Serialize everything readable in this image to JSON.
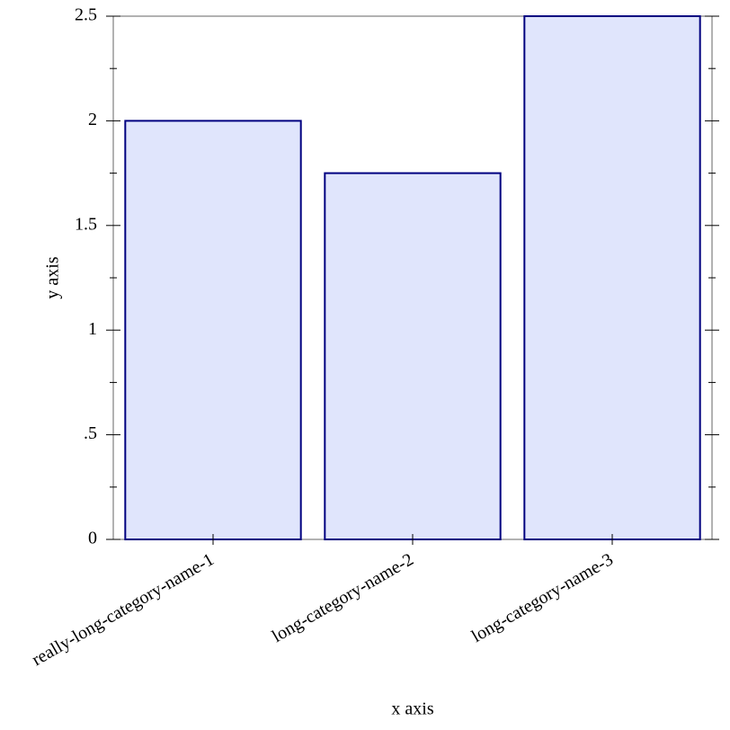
{
  "chart_data": {
    "type": "bar",
    "x_label": "x axis",
    "y_label": "y axis",
    "categories": [
      "really-long-category-name-1",
      "long-category-name-2",
      "long-category-name-3"
    ],
    "values": [
      2,
      1.75,
      2.5
    ],
    "color": "#e0e5fc",
    "edge_color": "#000080",
    "ylim": [
      0,
      2.5
    ],
    "yticks": [
      0,
      {
        "value": 0.5,
        "label": ".5"
      },
      1,
      1.5,
      2,
      2.5
    ]
  }
}
